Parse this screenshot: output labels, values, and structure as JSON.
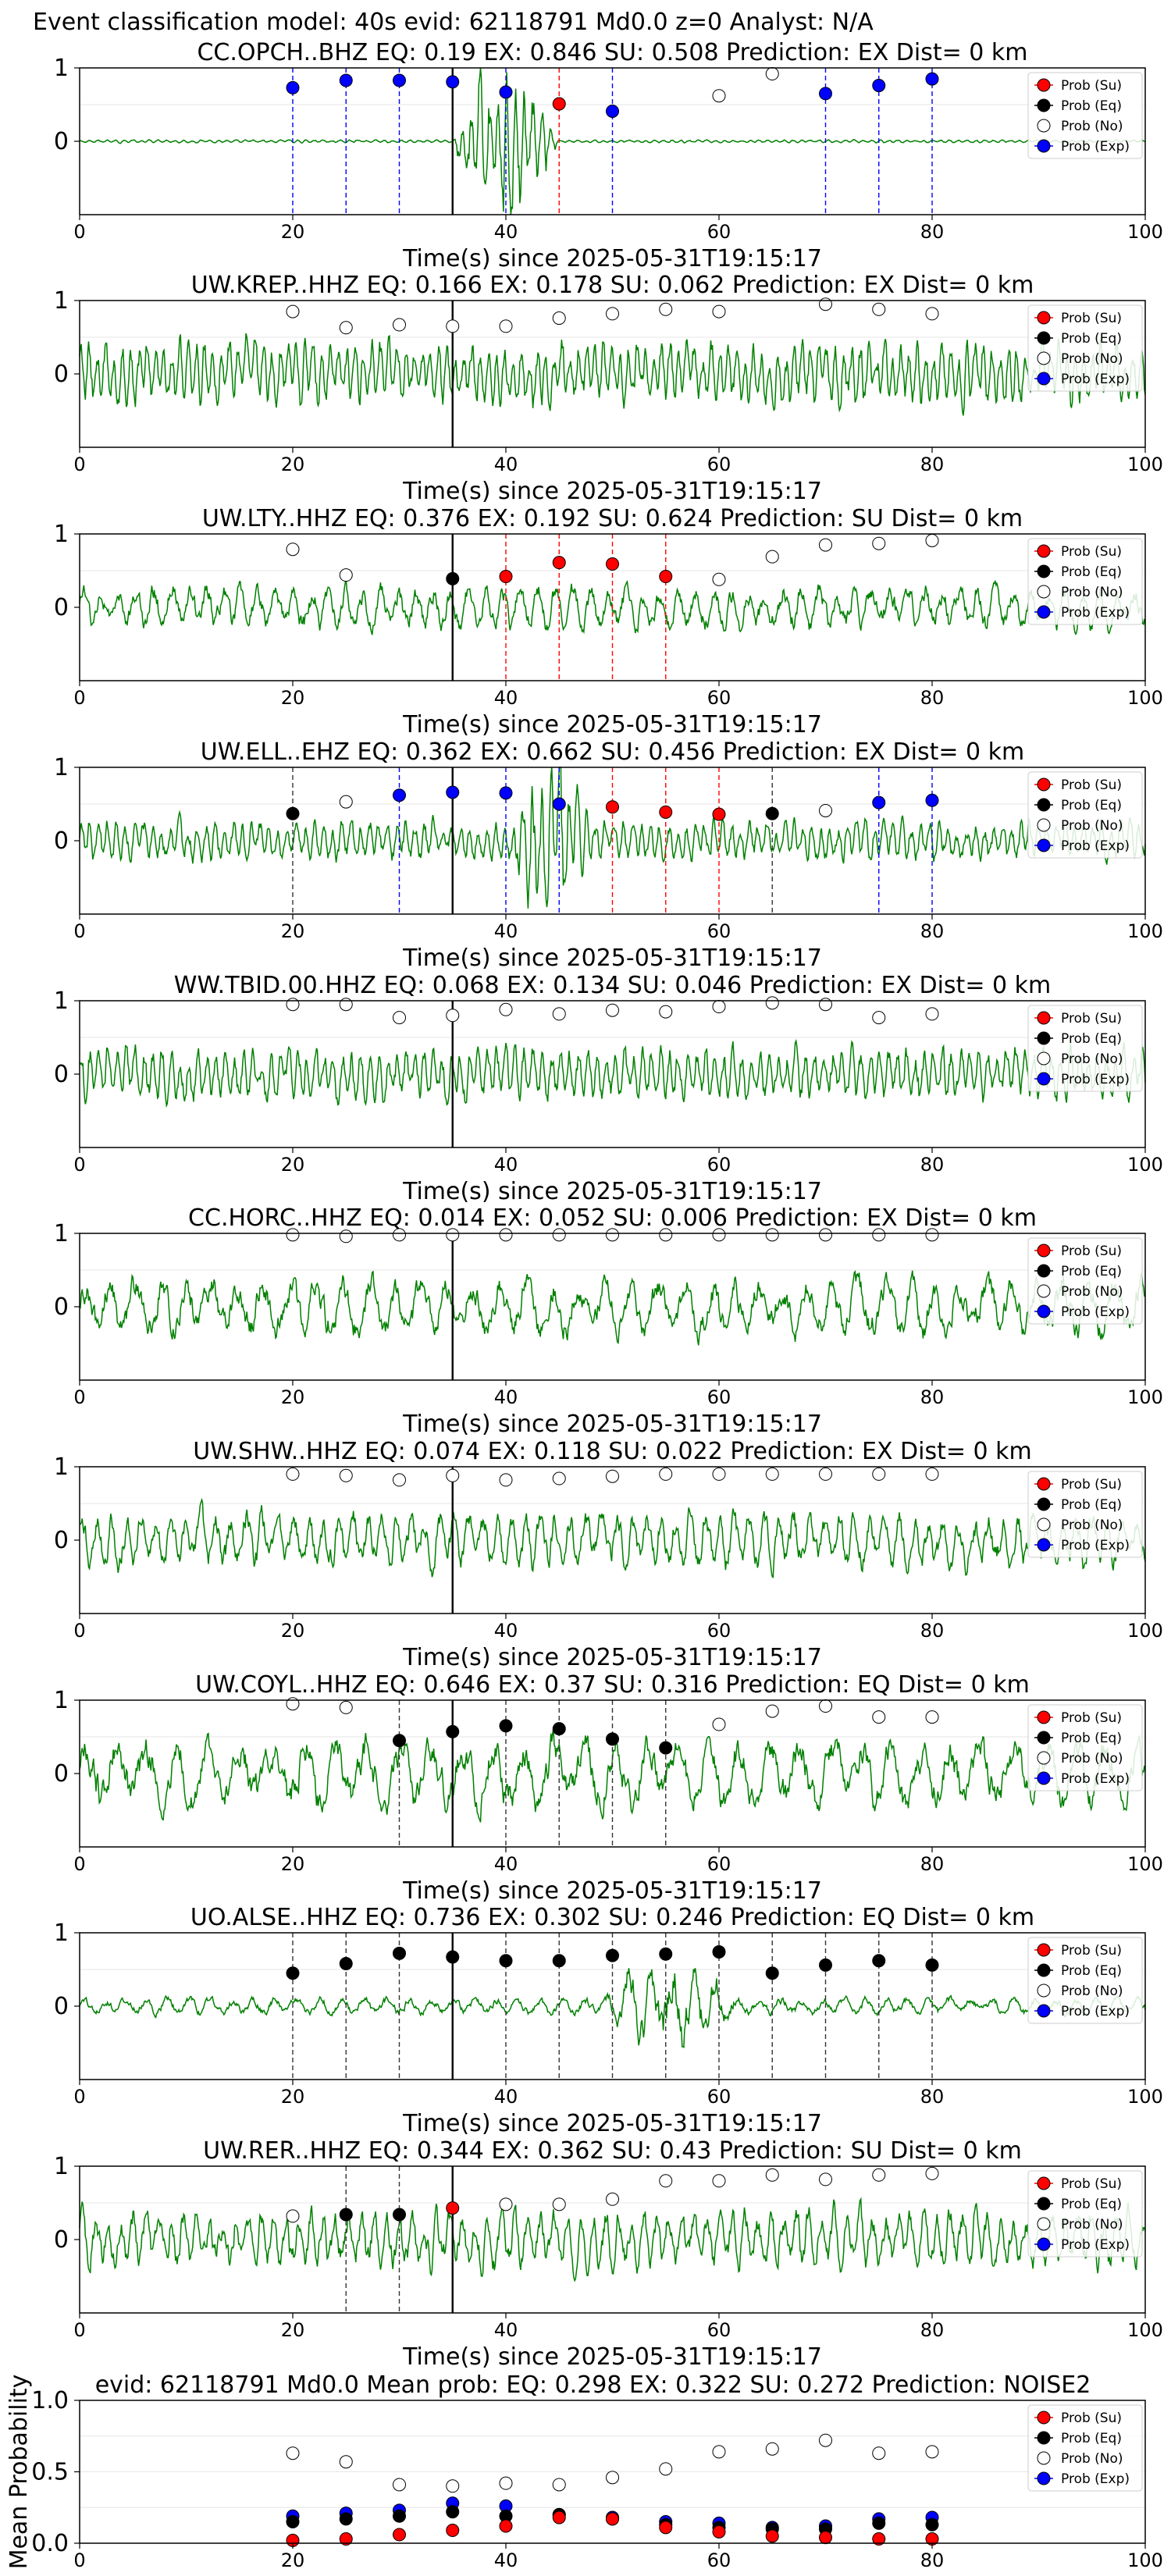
{
  "suptitle": "Event classification model: 40s evid: 62118791 Md0.0 z=0 Analyst: N/A",
  "xlabel": "Time(s) since 2025-05-31T19:15:17",
  "x_ticks": [
    "0",
    "20",
    "40",
    "60",
    "80",
    "100"
  ],
  "legend": [
    "Prob (Su)",
    "Prob (Eq)",
    "Prob (No)",
    "Prob (Exp)"
  ],
  "colors": {
    "su": "#ff0000",
    "eq": "#000000",
    "no": "#ffffff",
    "exp": "#0000ff",
    "trace": "#008000",
    "pick_line": "#000000"
  },
  "chart_data": [
    {
      "type": "scatter",
      "title": "CC.OPCH..BHZ    EQ: 0.19  EX: 0.846  SU: 0.508    Prediction: EX    Dist= 0 km",
      "xlim": [
        0,
        100
      ],
      "ylim": [
        -1,
        1
      ],
      "y_ticks": [
        "1",
        "0"
      ],
      "pick_time": 35,
      "points": [
        {
          "x": 20,
          "p": 0.73,
          "c": "exp"
        },
        {
          "x": 25,
          "p": 0.83,
          "c": "exp"
        },
        {
          "x": 30,
          "p": 0.83,
          "c": "exp"
        },
        {
          "x": 35,
          "p": 0.81,
          "c": "exp"
        },
        {
          "x": 40,
          "p": 0.67,
          "c": "exp"
        },
        {
          "x": 45,
          "p": 0.51,
          "c": "su"
        },
        {
          "x": 50,
          "p": 0.41,
          "c": "exp"
        },
        {
          "x": 60,
          "p": 0.62,
          "c": "no"
        },
        {
          "x": 65,
          "p": 0.92,
          "c": "no"
        },
        {
          "x": 70,
          "p": 0.65,
          "c": "exp"
        },
        {
          "x": 75,
          "p": 0.76,
          "c": "exp"
        },
        {
          "x": 80,
          "p": 0.85,
          "c": "exp"
        }
      ],
      "vlines": [
        {
          "x": 20,
          "c": "exp"
        },
        {
          "x": 25,
          "c": "exp"
        },
        {
          "x": 30,
          "c": "exp"
        },
        {
          "x": 40,
          "c": "exp"
        },
        {
          "x": 45,
          "c": "su"
        },
        {
          "x": 50,
          "c": "exp"
        },
        {
          "x": 70,
          "c": "exp"
        },
        {
          "x": 75,
          "c": "exp"
        },
        {
          "x": 80,
          "c": "exp"
        }
      ]
    },
    {
      "type": "scatter",
      "title": "UW.KREP..HHZ    EQ: 0.166  EX: 0.178  SU: 0.062    Prediction: EX    Dist= 0 km",
      "xlim": [
        0,
        100
      ],
      "ylim": [
        -1,
        1
      ],
      "y_ticks": [
        "1",
        "0"
      ],
      "pick_time": 35,
      "points": [
        {
          "x": 20,
          "p": 0.85,
          "c": "no"
        },
        {
          "x": 25,
          "p": 0.63,
          "c": "no"
        },
        {
          "x": 30,
          "p": 0.67,
          "c": "no"
        },
        {
          "x": 35,
          "p": 0.65,
          "c": "no"
        },
        {
          "x": 40,
          "p": 0.65,
          "c": "no"
        },
        {
          "x": 45,
          "p": 0.76,
          "c": "no"
        },
        {
          "x": 50,
          "p": 0.82,
          "c": "no"
        },
        {
          "x": 55,
          "p": 0.88,
          "c": "no"
        },
        {
          "x": 60,
          "p": 0.85,
          "c": "no"
        },
        {
          "x": 70,
          "p": 0.95,
          "c": "no"
        },
        {
          "x": 75,
          "p": 0.88,
          "c": "no"
        },
        {
          "x": 80,
          "p": 0.82,
          "c": "no"
        }
      ],
      "vlines": []
    },
    {
      "type": "scatter",
      "title": "UW.LTY..HHZ    EQ: 0.376  EX: 0.192  SU: 0.624    Prediction: SU    Dist= 0 km",
      "xlim": [
        0,
        100
      ],
      "ylim": [
        -1,
        1
      ],
      "y_ticks": [
        "1",
        "0"
      ],
      "pick_time": 35,
      "points": [
        {
          "x": 20,
          "p": 0.79,
          "c": "no"
        },
        {
          "x": 25,
          "p": 0.44,
          "c": "no"
        },
        {
          "x": 35,
          "p": 0.39,
          "c": "eq"
        },
        {
          "x": 40,
          "p": 0.42,
          "c": "su"
        },
        {
          "x": 45,
          "p": 0.61,
          "c": "su"
        },
        {
          "x": 50,
          "p": 0.59,
          "c": "su"
        },
        {
          "x": 55,
          "p": 0.42,
          "c": "su"
        },
        {
          "x": 60,
          "p": 0.38,
          "c": "no"
        },
        {
          "x": 65,
          "p": 0.69,
          "c": "no"
        },
        {
          "x": 70,
          "p": 0.85,
          "c": "no"
        },
        {
          "x": 75,
          "p": 0.87,
          "c": "no"
        },
        {
          "x": 80,
          "p": 0.91,
          "c": "no"
        }
      ],
      "vlines": [
        {
          "x": 40,
          "c": "su"
        },
        {
          "x": 45,
          "c": "su"
        },
        {
          "x": 50,
          "c": "su"
        },
        {
          "x": 55,
          "c": "su"
        }
      ]
    },
    {
      "type": "scatter",
      "title": "UW.ELL..EHZ    EQ: 0.362  EX: 0.662  SU: 0.456    Prediction: EX    Dist= 0 km",
      "xlim": [
        0,
        100
      ],
      "ylim": [
        -1,
        1
      ],
      "y_ticks": [
        "1",
        "0"
      ],
      "pick_time": 35,
      "points": [
        {
          "x": 20,
          "p": 0.37,
          "c": "eq"
        },
        {
          "x": 25,
          "p": 0.53,
          "c": "no"
        },
        {
          "x": 30,
          "p": 0.62,
          "c": "exp"
        },
        {
          "x": 35,
          "p": 0.66,
          "c": "exp"
        },
        {
          "x": 40,
          "p": 0.65,
          "c": "exp"
        },
        {
          "x": 45,
          "p": 0.5,
          "c": "exp"
        },
        {
          "x": 50,
          "p": 0.46,
          "c": "su"
        },
        {
          "x": 55,
          "p": 0.39,
          "c": "su"
        },
        {
          "x": 60,
          "p": 0.36,
          "c": "su"
        },
        {
          "x": 65,
          "p": 0.37,
          "c": "eq"
        },
        {
          "x": 70,
          "p": 0.41,
          "c": "no"
        },
        {
          "x": 75,
          "p": 0.52,
          "c": "exp"
        },
        {
          "x": 80,
          "p": 0.55,
          "c": "exp"
        }
      ],
      "vlines": [
        {
          "x": 20,
          "c": "eq"
        },
        {
          "x": 30,
          "c": "exp"
        },
        {
          "x": 40,
          "c": "exp"
        },
        {
          "x": 45,
          "c": "exp"
        },
        {
          "x": 50,
          "c": "su"
        },
        {
          "x": 55,
          "c": "su"
        },
        {
          "x": 60,
          "c": "su"
        },
        {
          "x": 65,
          "c": "eq"
        },
        {
          "x": 75,
          "c": "exp"
        },
        {
          "x": 80,
          "c": "exp"
        }
      ]
    },
    {
      "type": "scatter",
      "title": "WW.TBID.00.HHZ    EQ: 0.068  EX: 0.134  SU: 0.046    Prediction: EX    Dist= 0 km",
      "xlim": [
        0,
        100
      ],
      "ylim": [
        -1,
        1
      ],
      "y_ticks": [
        "1",
        "0"
      ],
      "pick_time": 35,
      "points": [
        {
          "x": 20,
          "p": 0.95,
          "c": "no"
        },
        {
          "x": 25,
          "p": 0.95,
          "c": "no"
        },
        {
          "x": 30,
          "p": 0.77,
          "c": "no"
        },
        {
          "x": 35,
          "p": 0.8,
          "c": "no"
        },
        {
          "x": 40,
          "p": 0.88,
          "c": "no"
        },
        {
          "x": 45,
          "p": 0.82,
          "c": "no"
        },
        {
          "x": 50,
          "p": 0.87,
          "c": "no"
        },
        {
          "x": 55,
          "p": 0.85,
          "c": "no"
        },
        {
          "x": 60,
          "p": 0.92,
          "c": "no"
        },
        {
          "x": 65,
          "p": 0.97,
          "c": "no"
        },
        {
          "x": 70,
          "p": 0.95,
          "c": "no"
        },
        {
          "x": 75,
          "p": 0.77,
          "c": "no"
        },
        {
          "x": 80,
          "p": 0.82,
          "c": "no"
        }
      ],
      "vlines": []
    },
    {
      "type": "scatter",
      "title": "CC.HORC..HHZ    EQ: 0.014  EX: 0.052  SU: 0.006    Prediction: EX    Dist= 0 km",
      "xlim": [
        0,
        100
      ],
      "ylim": [
        -1,
        1
      ],
      "y_ticks": [
        "1",
        "0"
      ],
      "pick_time": 35,
      "points": [
        {
          "x": 20,
          "p": 0.98,
          "c": "no"
        },
        {
          "x": 25,
          "p": 0.96,
          "c": "no"
        },
        {
          "x": 30,
          "p": 0.98,
          "c": "no"
        },
        {
          "x": 35,
          "p": 0.98,
          "c": "no"
        },
        {
          "x": 40,
          "p": 0.98,
          "c": "no"
        },
        {
          "x": 45,
          "p": 0.98,
          "c": "no"
        },
        {
          "x": 50,
          "p": 0.98,
          "c": "no"
        },
        {
          "x": 55,
          "p": 0.98,
          "c": "no"
        },
        {
          "x": 60,
          "p": 0.98,
          "c": "no"
        },
        {
          "x": 65,
          "p": 0.98,
          "c": "no"
        },
        {
          "x": 70,
          "p": 0.98,
          "c": "no"
        },
        {
          "x": 75,
          "p": 0.98,
          "c": "no"
        },
        {
          "x": 80,
          "p": 0.98,
          "c": "no"
        }
      ],
      "vlines": []
    },
    {
      "type": "scatter",
      "title": "UW.SHW..HHZ    EQ: 0.074  EX: 0.118  SU: 0.022    Prediction: EX    Dist= 0 km",
      "xlim": [
        0,
        100
      ],
      "ylim": [
        -1,
        1
      ],
      "y_ticks": [
        "1",
        "0"
      ],
      "pick_time": 35,
      "points": [
        {
          "x": 20,
          "p": 0.9,
          "c": "no"
        },
        {
          "x": 25,
          "p": 0.88,
          "c": "no"
        },
        {
          "x": 30,
          "p": 0.82,
          "c": "no"
        },
        {
          "x": 35,
          "p": 0.88,
          "c": "no"
        },
        {
          "x": 40,
          "p": 0.82,
          "c": "no"
        },
        {
          "x": 45,
          "p": 0.84,
          "c": "no"
        },
        {
          "x": 50,
          "p": 0.87,
          "c": "no"
        },
        {
          "x": 55,
          "p": 0.9,
          "c": "no"
        },
        {
          "x": 60,
          "p": 0.9,
          "c": "no"
        },
        {
          "x": 65,
          "p": 0.9,
          "c": "no"
        },
        {
          "x": 70,
          "p": 0.9,
          "c": "no"
        },
        {
          "x": 75,
          "p": 0.9,
          "c": "no"
        },
        {
          "x": 80,
          "p": 0.9,
          "c": "no"
        }
      ],
      "vlines": []
    },
    {
      "type": "scatter",
      "title": "UW.COYL..HHZ    EQ: 0.646  EX: 0.37  SU: 0.316    Prediction: EQ    Dist= 0 km",
      "xlim": [
        0,
        100
      ],
      "ylim": [
        -1,
        1
      ],
      "y_ticks": [
        "1",
        "0"
      ],
      "pick_time": 35,
      "points": [
        {
          "x": 20,
          "p": 0.95,
          "c": "no"
        },
        {
          "x": 25,
          "p": 0.9,
          "c": "no"
        },
        {
          "x": 30,
          "p": 0.45,
          "c": "eq"
        },
        {
          "x": 35,
          "p": 0.57,
          "c": "eq"
        },
        {
          "x": 40,
          "p": 0.65,
          "c": "eq"
        },
        {
          "x": 45,
          "p": 0.61,
          "c": "eq"
        },
        {
          "x": 50,
          "p": 0.47,
          "c": "eq"
        },
        {
          "x": 55,
          "p": 0.35,
          "c": "eq"
        },
        {
          "x": 60,
          "p": 0.67,
          "c": "no"
        },
        {
          "x": 65,
          "p": 0.85,
          "c": "no"
        },
        {
          "x": 70,
          "p": 0.92,
          "c": "no"
        },
        {
          "x": 75,
          "p": 0.77,
          "c": "no"
        },
        {
          "x": 80,
          "p": 0.77,
          "c": "no"
        }
      ],
      "vlines": [
        {
          "x": 30,
          "c": "eq"
        },
        {
          "x": 40,
          "c": "eq"
        },
        {
          "x": 45,
          "c": "eq"
        },
        {
          "x": 50,
          "c": "eq"
        },
        {
          "x": 55,
          "c": "eq"
        }
      ]
    },
    {
      "type": "scatter",
      "title": "UO.ALSE..HHZ    EQ: 0.736  EX: 0.302  SU: 0.246    Prediction: EQ    Dist= 0 km",
      "xlim": [
        0,
        100
      ],
      "ylim": [
        -1,
        1
      ],
      "y_ticks": [
        "1",
        "0"
      ],
      "pick_time": 35,
      "points": [
        {
          "x": 20,
          "p": 0.45,
          "c": "eq"
        },
        {
          "x": 25,
          "p": 0.58,
          "c": "eq"
        },
        {
          "x": 30,
          "p": 0.72,
          "c": "eq"
        },
        {
          "x": 35,
          "p": 0.67,
          "c": "eq"
        },
        {
          "x": 40,
          "p": 0.62,
          "c": "eq"
        },
        {
          "x": 45,
          "p": 0.62,
          "c": "eq"
        },
        {
          "x": 50,
          "p": 0.69,
          "c": "eq"
        },
        {
          "x": 55,
          "p": 0.71,
          "c": "eq"
        },
        {
          "x": 60,
          "p": 0.74,
          "c": "eq"
        },
        {
          "x": 65,
          "p": 0.45,
          "c": "eq"
        },
        {
          "x": 70,
          "p": 0.56,
          "c": "eq"
        },
        {
          "x": 75,
          "p": 0.62,
          "c": "eq"
        },
        {
          "x": 80,
          "p": 0.56,
          "c": "eq"
        }
      ],
      "vlines": [
        {
          "x": 20,
          "c": "eq"
        },
        {
          "x": 25,
          "c": "eq"
        },
        {
          "x": 30,
          "c": "eq"
        },
        {
          "x": 40,
          "c": "eq"
        },
        {
          "x": 45,
          "c": "eq"
        },
        {
          "x": 50,
          "c": "eq"
        },
        {
          "x": 55,
          "c": "eq"
        },
        {
          "x": 60,
          "c": "eq"
        },
        {
          "x": 65,
          "c": "eq"
        },
        {
          "x": 70,
          "c": "eq"
        },
        {
          "x": 75,
          "c": "eq"
        },
        {
          "x": 80,
          "c": "eq"
        }
      ]
    },
    {
      "type": "scatter",
      "title": "UW.RER..HHZ    EQ: 0.344  EX: 0.362  SU: 0.43    Prediction: SU    Dist= 0 km",
      "xlim": [
        0,
        100
      ],
      "ylim": [
        -1,
        1
      ],
      "y_ticks": [
        "1",
        "0"
      ],
      "pick_time": 35,
      "points": [
        {
          "x": 20,
          "p": 0.32,
          "c": "no"
        },
        {
          "x": 25,
          "p": 0.34,
          "c": "eq"
        },
        {
          "x": 30,
          "p": 0.34,
          "c": "eq"
        },
        {
          "x": 35,
          "p": 0.43,
          "c": "su"
        },
        {
          "x": 40,
          "p": 0.48,
          "c": "no"
        },
        {
          "x": 45,
          "p": 0.48,
          "c": "no"
        },
        {
          "x": 50,
          "p": 0.55,
          "c": "no"
        },
        {
          "x": 55,
          "p": 0.8,
          "c": "no"
        },
        {
          "x": 60,
          "p": 0.8,
          "c": "no"
        },
        {
          "x": 65,
          "p": 0.88,
          "c": "no"
        },
        {
          "x": 70,
          "p": 0.82,
          "c": "no"
        },
        {
          "x": 75,
          "p": 0.88,
          "c": "no"
        },
        {
          "x": 80,
          "p": 0.9,
          "c": "no"
        }
      ],
      "vlines": [
        {
          "x": 25,
          "c": "eq"
        },
        {
          "x": 30,
          "c": "eq"
        }
      ]
    },
    {
      "type": "scatter",
      "title": "evid: 62118791  Md0.0    Mean prob:   EQ: 0.298  EX: 0.322  SU: 0.272   Prediction: NOISE2",
      "ylabel": "Mean Probability",
      "xlim": [
        0,
        100
      ],
      "ylim": [
        0,
        1
      ],
      "y_ticks": [
        "1.0",
        "0.5",
        "0.0"
      ],
      "x": [
        20,
        25,
        30,
        35,
        40,
        45,
        50,
        55,
        60,
        65,
        70,
        75,
        80
      ],
      "series": [
        {
          "name": "Prob (No)",
          "c": "no",
          "values": [
            0.63,
            0.57,
            0.41,
            0.4,
            0.42,
            0.41,
            0.46,
            0.52,
            0.64,
            0.66,
            0.72,
            0.63,
            0.64
          ]
        },
        {
          "name": "Prob (Exp)",
          "c": "exp",
          "values": [
            0.19,
            0.21,
            0.23,
            0.28,
            0.26,
            0.2,
            0.18,
            0.15,
            0.14,
            0.11,
            0.12,
            0.17,
            0.18
          ]
        },
        {
          "name": "Prob (Eq)",
          "c": "eq",
          "values": [
            0.15,
            0.17,
            0.19,
            0.22,
            0.19,
            0.2,
            0.17,
            0.13,
            0.11,
            0.1,
            0.1,
            0.14,
            0.13
          ]
        },
        {
          "name": "Prob (Su)",
          "c": "su",
          "values": [
            0.02,
            0.03,
            0.06,
            0.09,
            0.12,
            0.18,
            0.17,
            0.11,
            0.08,
            0.05,
            0.04,
            0.03,
            0.03
          ]
        }
      ]
    }
  ]
}
